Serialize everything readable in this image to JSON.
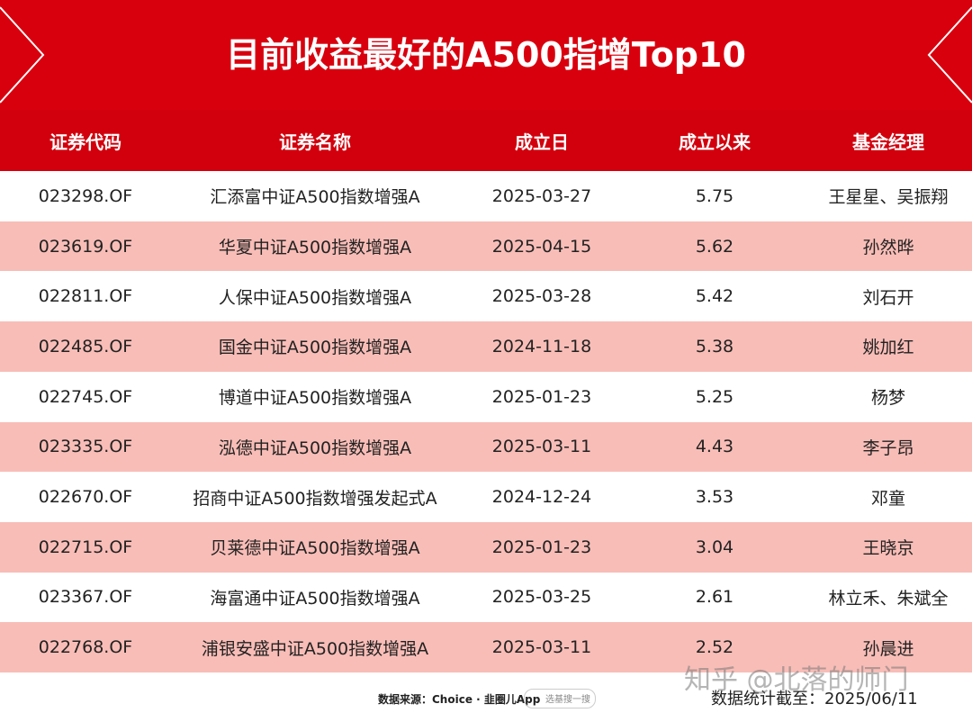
{
  "header": {
    "title": "目前收益最好的A500指增Top10"
  },
  "table": {
    "columns": [
      "证券代码",
      "证券名称",
      "成立日",
      "成立以来",
      "基金经理"
    ],
    "rows": [
      [
        "023298.OF",
        "汇添富中证A500指数增强A",
        "2025-03-27",
        "5.75",
        "王星星、吴振翔"
      ],
      [
        "023619.OF",
        "华夏中证A500指数增强A",
        "2025-04-15",
        "5.62",
        "孙然晔"
      ],
      [
        "022811.OF",
        "人保中证A500指数增强A",
        "2025-03-28",
        "5.42",
        "刘石开"
      ],
      [
        "022485.OF",
        "国金中证A500指数增强A",
        "2024-11-18",
        "5.38",
        "姚加红"
      ],
      [
        "022745.OF",
        "博道中证A500指数增强A",
        "2025-01-23",
        "5.25",
        "杨梦"
      ],
      [
        "023335.OF",
        "泓德中证A500指数增强A",
        "2025-03-11",
        "4.43",
        "李子昂"
      ],
      [
        "022670.OF",
        "招商中证A500指数增强发起式A",
        "2024-12-24",
        "3.53",
        "邓童"
      ],
      [
        "022715.OF",
        "贝莱德中证A500指数增强A",
        "2025-01-23",
        "3.04",
        "王晓京"
      ],
      [
        "023367.OF",
        "海富通中证A500指数增强A",
        "2025-03-25",
        "2.61",
        "林立禾、朱斌全"
      ],
      [
        "022768.OF",
        "浦银安盛中证A500指数增强A",
        "2025-03-11",
        "2.52",
        "孙晨进"
      ]
    ]
  },
  "footer": {
    "source": "数据来源：Choice · 韭圈儿App",
    "search": "选基搜一搜",
    "date": "数据统计截至：2025/06/11",
    "watermark": "知乎 @北落的师门"
  }
}
